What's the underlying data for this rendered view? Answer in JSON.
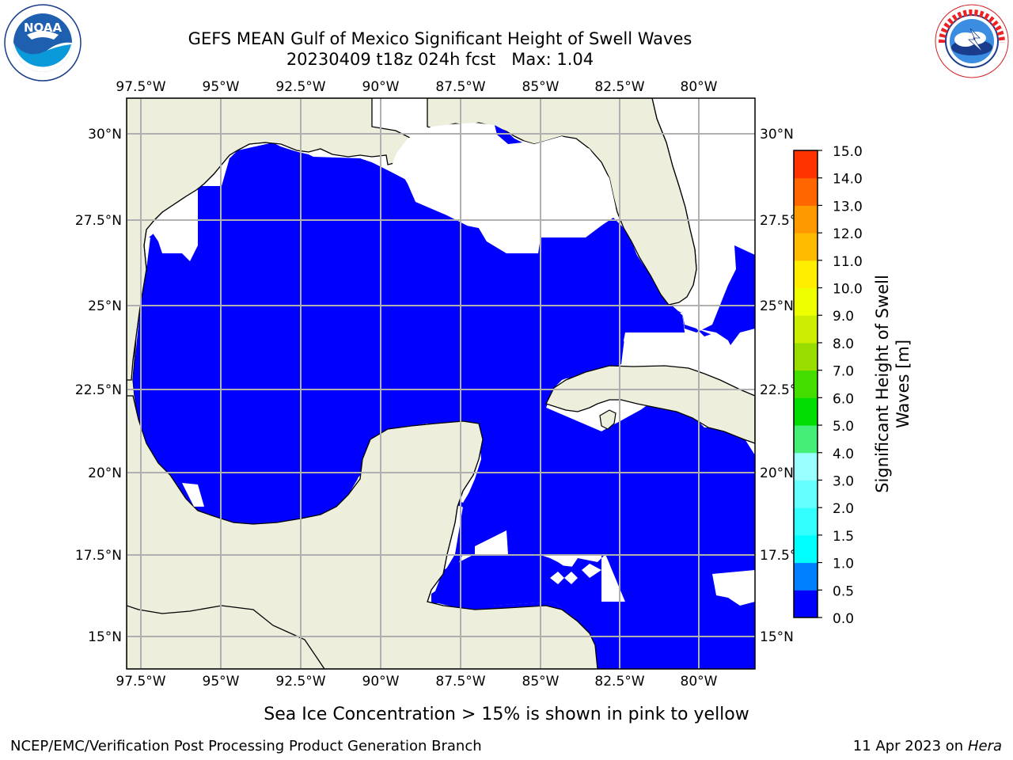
{
  "title": {
    "line1": "GEFS MEAN Gulf of Mexico Significant Height of Swell Waves",
    "line2": "20230409 t18z 024h fcst   Max: 1.04"
  },
  "logos": {
    "noaa_text": "NOAA",
    "noaa_ring_text": "NATIONAL OCEANIC AND ATMOSPHERIC ADMINISTRATION · U.S. DEPARTMENT OF COMMERCE",
    "nws_ring_text": "NATIONAL WEATHER SERVICE"
  },
  "map": {
    "lon_labels": [
      "97.5°W",
      "95°W",
      "92.5°W",
      "90°W",
      "87.5°W",
      "85°W",
      "82.5°W",
      "80°W"
    ],
    "lat_labels": [
      "30°N",
      "27.5°N",
      "25°N",
      "22.5°N",
      "20°N",
      "17.5°N",
      "15°N"
    ],
    "colors": {
      "land": "#eeeedd",
      "sea_low": "#0000ff",
      "sea_mid": "#0080ff",
      "grid": "#b0b0b0"
    }
  },
  "colorbar": {
    "label_line1": "Significant Height of Swell",
    "label_line2": "Waves [m]",
    "ticks": [
      "0.0",
      "0.5",
      "1.0",
      "1.5",
      "2.0",
      "3.0",
      "4.0",
      "5.0",
      "6.0",
      "7.0",
      "8.0",
      "9.0",
      "10.0",
      "11.0",
      "12.0",
      "13.0",
      "14.0",
      "15.0"
    ],
    "colors": [
      "#0000ff",
      "#0080ff",
      "#00ffff",
      "#33ffff",
      "#66ffff",
      "#99ffff",
      "#44ee77",
      "#00dd00",
      "#44dd00",
      "#99dd00",
      "#ccee00",
      "#eeff00",
      "#ffee00",
      "#ffbb00",
      "#ff9900",
      "#ff6600",
      "#ff3300",
      "#ff0000"
    ]
  },
  "footer": {
    "note": "Sea Ice Concentration > 15% is shown in pink to yellow",
    "left": "NCEP/EMC/Verification Post Processing Product Generation Branch",
    "right_date": "11 Apr 2023 on ",
    "right_host": "Hera"
  }
}
